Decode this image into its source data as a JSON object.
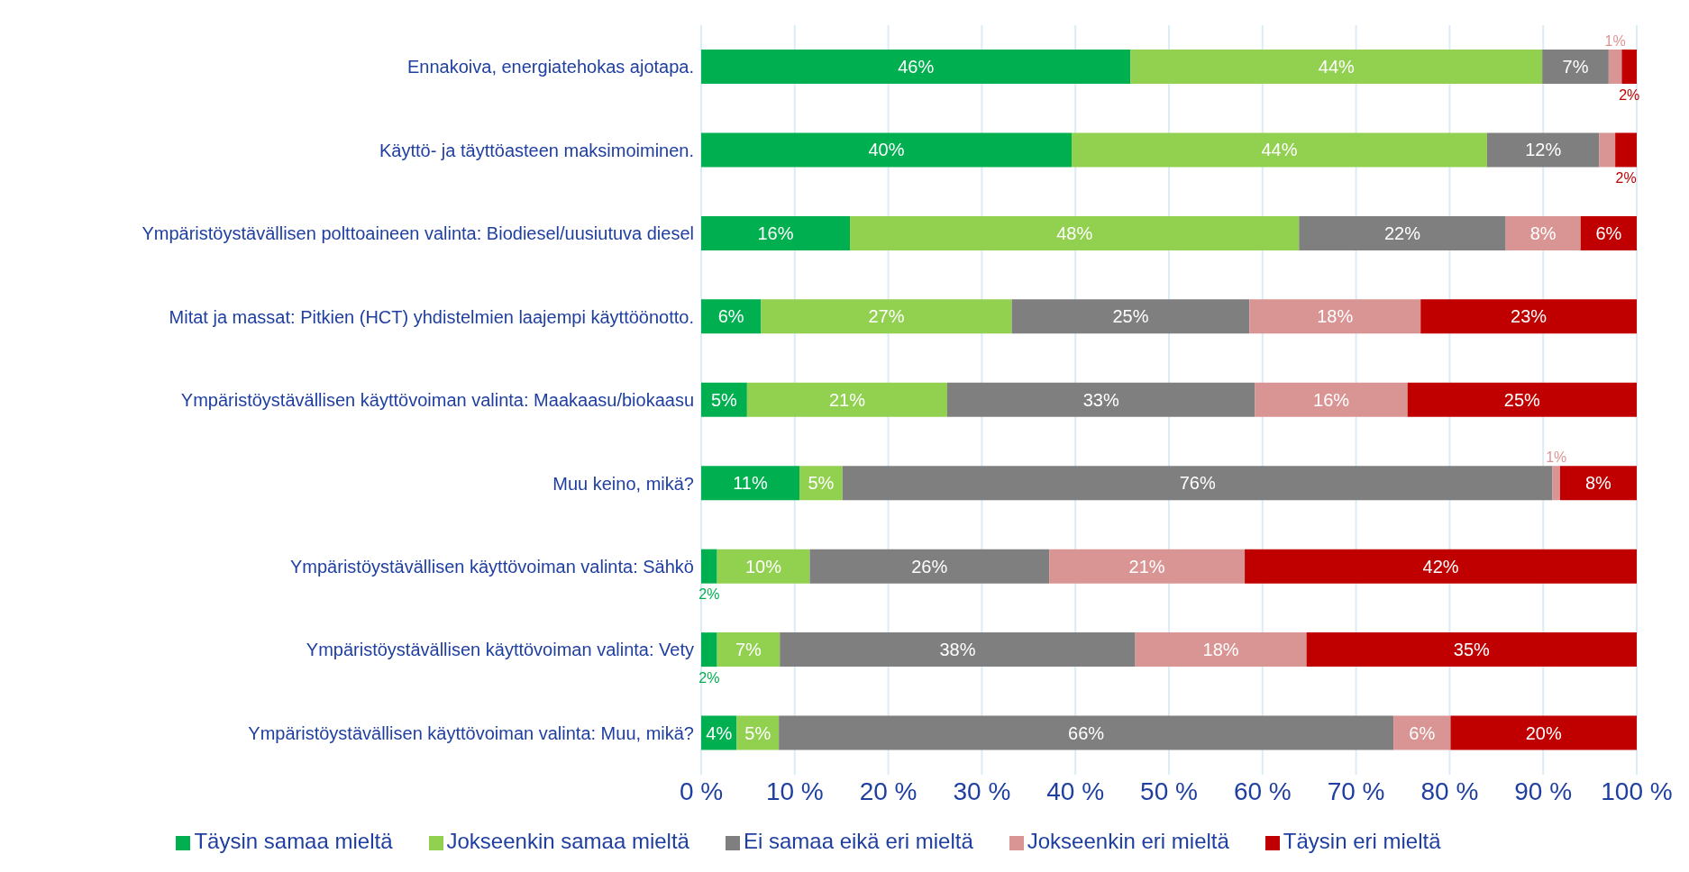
{
  "chart_data": {
    "type": "bar",
    "orientation": "horizontal",
    "stacked": true,
    "categories": [
      "Ennakoiva, energiatehokas ajotapa.",
      "Käyttö- ja täyttöasteen maksimoiminen.",
      "Ympäristöystävällisen polttoaineen valinta: Biodiesel/uusiutuva diesel",
      "Mitat ja massat: Pitkien (HCT) yhdistelmien laajempi käyttöönotto.",
      "Ympäristöystävällisen käyttövoiman valinta: Maakaasu/biokaasu",
      "Muu keino, mikä?",
      "Ympäristöystävällisen käyttövoiman valinta: Sähkö",
      "Ympäristöystävällisen käyttövoiman valinta: Vety",
      "Ympäristöystävällisen käyttövoiman valinta: Muu, mikä?"
    ],
    "series": [
      {
        "name": "Täysin samaa mieltä",
        "color": "#00b050",
        "values": [
          45.9,
          39.6,
          15.9,
          6.4,
          4.9,
          10.5,
          1.7,
          1.7,
          3.8
        ],
        "value_labels": [
          "46%",
          "40%",
          "16%",
          "6%",
          "5%",
          "11%",
          "2%",
          "2%",
          "4%"
        ]
      },
      {
        "name": "Jokseenkin samaa mieltä",
        "color": "#92d050",
        "values": [
          44.0,
          44.4,
          48.0,
          26.8,
          21.4,
          4.6,
          9.9,
          6.7,
          4.5
        ],
        "value_labels": [
          "44%",
          "44%",
          "48%",
          "27%",
          "21%",
          "5%",
          "10%",
          "7%",
          "5%"
        ]
      },
      {
        "name": "Ei samaa eikä eri mieltä",
        "color": "#7f7f7f",
        "values": [
          7.1,
          12.0,
          22.1,
          25.4,
          32.9,
          75.9,
          25.6,
          38.0,
          65.7
        ],
        "value_labels": [
          "7%",
          "12%",
          "22%",
          "25%",
          "33%",
          "76%",
          "26%",
          "38%",
          "66%"
        ]
      },
      {
        "name": "Jokseenkin eri mieltä",
        "color": "#d99594",
        "values": [
          1.4,
          1.7,
          8.0,
          18.3,
          16.3,
          0.8,
          20.9,
          18.3,
          6.1
        ],
        "value_labels": [
          "1%",
          null,
          "8%",
          "18%",
          "16%",
          "1%",
          "21%",
          "18%",
          "6%"
        ]
      },
      {
        "name": "Täysin eri mieltä",
        "color": "#c00000",
        "values": [
          1.6,
          2.3,
          6.0,
          23.1,
          24.5,
          8.2,
          41.9,
          35.3,
          19.9
        ],
        "value_labels": [
          "2%",
          "2%",
          "6%",
          "23%",
          "25%",
          "8%",
          "42%",
          "35%",
          "20%"
        ]
      }
    ],
    "xlim": [
      0,
      100
    ],
    "xticks": [
      {
        "value": 0,
        "label": "0 %"
      },
      {
        "value": 10,
        "label": "10 %"
      },
      {
        "value": 20,
        "label": "20 %"
      },
      {
        "value": 30,
        "label": "30 %"
      },
      {
        "value": 40,
        "label": "40 %"
      },
      {
        "value": 50,
        "label": "50 %"
      },
      {
        "value": 60,
        "label": "60 %"
      },
      {
        "value": 70,
        "label": "70 %"
      },
      {
        "value": 80,
        "label": "80 %"
      },
      {
        "value": 90,
        "label": "90 %"
      },
      {
        "value": 100,
        "label": "100 %"
      }
    ],
    "grid": "x",
    "legend": "bottom"
  }
}
